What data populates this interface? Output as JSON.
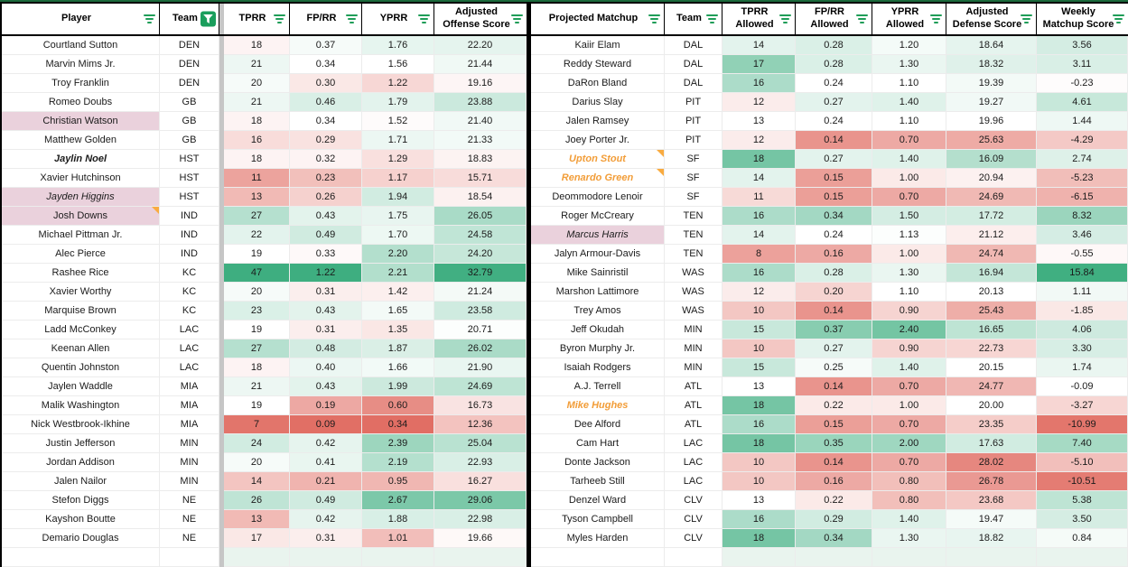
{
  "colors": {
    "grad_green": "#3eae80",
    "grad_red": "#e0695f",
    "highlight_pink": "#ead1dc",
    "orange_text": "#f29d38",
    "note_triangle": "#f9ab40",
    "filter_green": "#1f9d58",
    "filter_button_green": "#1a9e5c",
    "top_line_green": "#1b6a3c",
    "frozen_divider_gray": "#c6c6c6",
    "table_divider_black": "#000000"
  },
  "left_table": {
    "headers": [
      {
        "label": "Player",
        "icon": "filter-lines"
      },
      {
        "label": "Team",
        "icon": "filter-button"
      },
      {
        "label": "TPRR",
        "icon": "filter-lines"
      },
      {
        "label": "FP/RR",
        "icon": "filter-lines"
      },
      {
        "label": "YPRR",
        "icon": "filter-lines"
      },
      {
        "label": "Adjusted Offense Score",
        "icon": "filter-lines"
      }
    ],
    "columns": [
      {
        "key": "tprr",
        "min": 6,
        "mid": 19,
        "max": 40
      },
      {
        "key": "fprr",
        "min": 0.08,
        "mid": 0.34,
        "max": 0.95
      },
      {
        "key": "yprr",
        "min": 0.3,
        "mid": 1.55,
        "max": 3.2
      },
      {
        "key": "score",
        "min": 0,
        "mid": 20.5,
        "max": 33
      }
    ],
    "rows": [
      {
        "player": "Courtland Sutton",
        "team": "DEN",
        "tprr": "18",
        "fprr": "0.37",
        "yprr": "1.76",
        "score": "22.20"
      },
      {
        "player": "Marvin Mims Jr.",
        "team": "DEN",
        "tprr": "21",
        "fprr": "0.34",
        "yprr": "1.56",
        "score": "21.44"
      },
      {
        "player": "Troy Franklin",
        "team": "DEN",
        "tprr": "20",
        "fprr": "0.30",
        "yprr": "1.22",
        "score": "19.16"
      },
      {
        "player": "Romeo Doubs",
        "team": "GB",
        "tprr": "21",
        "fprr": "0.46",
        "yprr": "1.79",
        "score": "23.88"
      },
      {
        "player": "Christian Watson",
        "team": "GB",
        "tprr": "18",
        "fprr": "0.34",
        "yprr": "1.52",
        "score": "21.40",
        "bg": "pink"
      },
      {
        "player": "Matthew Golden",
        "team": "GB",
        "tprr": "16",
        "fprr": "0.29",
        "yprr": "1.71",
        "score": "21.33"
      },
      {
        "player": "Jaylin Noel",
        "team": "HST",
        "tprr": "18",
        "fprr": "0.32",
        "yprr": "1.29",
        "score": "18.83",
        "style": "bold-italic"
      },
      {
        "player": "Xavier Hutchinson",
        "team": "HST",
        "tprr": "11",
        "fprr": "0.23",
        "yprr": "1.17",
        "score": "15.71"
      },
      {
        "player": "Jayden Higgins",
        "team": "HST",
        "tprr": "13",
        "fprr": "0.26",
        "yprr": "1.94",
        "score": "18.54",
        "style": "italic",
        "bg": "pink"
      },
      {
        "player": "Josh Downs",
        "team": "IND",
        "tprr": "27",
        "fprr": "0.43",
        "yprr": "1.75",
        "score": "26.05",
        "bg": "pink",
        "note": true
      },
      {
        "player": "Michael Pittman Jr.",
        "team": "IND",
        "tprr": "22",
        "fprr": "0.49",
        "yprr": "1.70",
        "score": "24.58"
      },
      {
        "player": "Alec Pierce",
        "team": "IND",
        "tprr": "19",
        "fprr": "0.33",
        "yprr": "2.20",
        "score": "24.20"
      },
      {
        "player": "Rashee Rice",
        "team": "KC",
        "tprr": "47",
        "fprr": "1.22",
        "yprr": "2.21",
        "score": "32.79"
      },
      {
        "player": "Xavier Worthy",
        "team": "KC",
        "tprr": "20",
        "fprr": "0.31",
        "yprr": "1.42",
        "score": "21.24"
      },
      {
        "player": "Marquise Brown",
        "team": "KC",
        "tprr": "23",
        "fprr": "0.43",
        "yprr": "1.65",
        "score": "23.58"
      },
      {
        "player": "Ladd McConkey",
        "team": "LAC",
        "tprr": "19",
        "fprr": "0.31",
        "yprr": "1.35",
        "score": "20.71"
      },
      {
        "player": "Keenan Allen",
        "team": "LAC",
        "tprr": "27",
        "fprr": "0.48",
        "yprr": "1.87",
        "score": "26.02"
      },
      {
        "player": "Quentin Johnston",
        "team": "LAC",
        "tprr": "18",
        "fprr": "0.40",
        "yprr": "1.66",
        "score": "21.90"
      },
      {
        "player": "Jaylen Waddle",
        "team": "MIA",
        "tprr": "21",
        "fprr": "0.43",
        "yprr": "1.99",
        "score": "24.69"
      },
      {
        "player": "Malik Washington",
        "team": "MIA",
        "tprr": "19",
        "fprr": "0.19",
        "yprr": "0.60",
        "score": "16.73"
      },
      {
        "player": "Nick Westbrook-Ikhine",
        "team": "MIA",
        "tprr": "7",
        "fprr": "0.09",
        "yprr": "0.34",
        "score": "12.36"
      },
      {
        "player": "Justin Jefferson",
        "team": "MIN",
        "tprr": "24",
        "fprr": "0.42",
        "yprr": "2.39",
        "score": "25.04"
      },
      {
        "player": "Jordan Addison",
        "team": "MIN",
        "tprr": "20",
        "fprr": "0.41",
        "yprr": "2.19",
        "score": "22.93"
      },
      {
        "player": "Jalen Nailor",
        "team": "MIN",
        "tprr": "14",
        "fprr": "0.21",
        "yprr": "0.95",
        "score": "16.27"
      },
      {
        "player": "Stefon Diggs",
        "team": "NE",
        "tprr": "26",
        "fprr": "0.49",
        "yprr": "2.67",
        "score": "29.06"
      },
      {
        "player": "Kayshon Boutte",
        "team": "NE",
        "tprr": "13",
        "fprr": "0.42",
        "yprr": "1.88",
        "score": "22.98"
      },
      {
        "player": "Demario Douglas",
        "team": "NE",
        "tprr": "17",
        "fprr": "0.31",
        "yprr": "1.01",
        "score": "19.66"
      }
    ]
  },
  "right_table": {
    "headers": [
      {
        "label": "Projected Matchup",
        "icon": "filter-lines"
      },
      {
        "label": "Team",
        "icon": "filter-lines"
      },
      {
        "label": "TPRR Allowed",
        "icon": "filter-lines"
      },
      {
        "label": "FP/RR Allowed",
        "icon": "filter-lines"
      },
      {
        "label": "YPRR Allowed",
        "icon": "filter-lines"
      },
      {
        "label": "Adjusted Defense Score",
        "icon": "filter-lines"
      },
      {
        "label": "Weekly Matchup Score",
        "icon": "filter-lines"
      }
    ],
    "columns": [
      {
        "key": "tprr_allowed",
        "min": 5,
        "mid": 13,
        "max": 20
      },
      {
        "key": "fprr_allowed",
        "min": 0.1,
        "mid": 0.24,
        "max": 0.45
      },
      {
        "key": "yprr_allowed",
        "min": 0.4,
        "mid": 1.1,
        "max": 2.9
      },
      {
        "key": "defense_score",
        "min": 10,
        "mid": 20,
        "max": 30,
        "invert": true
      },
      {
        "key": "weekly_score",
        "min": -12,
        "mid": 0,
        "max": 16
      }
    ],
    "rows": [
      {
        "matchup": "Kaiir Elam",
        "team": "DAL",
        "tprr_allowed": "14",
        "fprr_allowed": "0.28",
        "yprr_allowed": "1.20",
        "defense_score": "18.64",
        "weekly_score": "3.56"
      },
      {
        "matchup": "Reddy Steward",
        "team": "DAL",
        "tprr_allowed": "17",
        "fprr_allowed": "0.28",
        "yprr_allowed": "1.30",
        "defense_score": "18.32",
        "weekly_score": "3.11"
      },
      {
        "matchup": "DaRon Bland",
        "team": "DAL",
        "tprr_allowed": "16",
        "fprr_allowed": "0.24",
        "yprr_allowed": "1.10",
        "defense_score": "19.39",
        "weekly_score": "-0.23"
      },
      {
        "matchup": "Darius Slay",
        "team": "PIT",
        "tprr_allowed": "12",
        "fprr_allowed": "0.27",
        "yprr_allowed": "1.40",
        "defense_score": "19.27",
        "weekly_score": "4.61"
      },
      {
        "matchup": "Jalen Ramsey",
        "team": "PIT",
        "tprr_allowed": "13",
        "fprr_allowed": "0.24",
        "yprr_allowed": "1.10",
        "defense_score": "19.96",
        "weekly_score": "1.44"
      },
      {
        "matchup": "Joey Porter Jr.",
        "team": "PIT",
        "tprr_allowed": "12",
        "fprr_allowed": "0.14",
        "yprr_allowed": "0.70",
        "defense_score": "25.63",
        "weekly_score": "-4.29"
      },
      {
        "matchup": "Upton Stout",
        "team": "SF",
        "tprr_allowed": "18",
        "fprr_allowed": "0.27",
        "yprr_allowed": "1.40",
        "defense_score": "16.09",
        "weekly_score": "2.74",
        "style": "orange-italic",
        "note": true
      },
      {
        "matchup": "Renardo Green",
        "team": "SF",
        "tprr_allowed": "14",
        "fprr_allowed": "0.15",
        "yprr_allowed": "1.00",
        "defense_score": "20.94",
        "weekly_score": "-5.23",
        "style": "orange-italic",
        "note": true
      },
      {
        "matchup": "Deommodore Lenoir",
        "team": "SF",
        "tprr_allowed": "11",
        "fprr_allowed": "0.15",
        "yprr_allowed": "0.70",
        "defense_score": "24.69",
        "weekly_score": "-6.15"
      },
      {
        "matchup": "Roger McCreary",
        "team": "TEN",
        "tprr_allowed": "16",
        "fprr_allowed": "0.34",
        "yprr_allowed": "1.50",
        "defense_score": "17.72",
        "weekly_score": "8.32"
      },
      {
        "matchup": "Marcus Harris",
        "team": "TEN",
        "tprr_allowed": "14",
        "fprr_allowed": "0.24",
        "yprr_allowed": "1.13",
        "defense_score": "21.12",
        "weekly_score": "3.46",
        "style": "italic",
        "bg": "pink"
      },
      {
        "matchup": "Jalyn Armour-Davis",
        "team": "TEN",
        "tprr_allowed": "8",
        "fprr_allowed": "0.16",
        "yprr_allowed": "1.00",
        "defense_score": "24.74",
        "weekly_score": "-0.55"
      },
      {
        "matchup": "Mike Sainristil",
        "team": "WAS",
        "tprr_allowed": "16",
        "fprr_allowed": "0.28",
        "yprr_allowed": "1.30",
        "defense_score": "16.94",
        "weekly_score": "15.84"
      },
      {
        "matchup": "Marshon Lattimore",
        "team": "WAS",
        "tprr_allowed": "12",
        "fprr_allowed": "0.20",
        "yprr_allowed": "1.10",
        "defense_score": "20.13",
        "weekly_score": "1.11"
      },
      {
        "matchup": "Trey Amos",
        "team": "WAS",
        "tprr_allowed": "10",
        "fprr_allowed": "0.14",
        "yprr_allowed": "0.90",
        "defense_score": "25.43",
        "weekly_score": "-1.85"
      },
      {
        "matchup": "Jeff Okudah",
        "team": "MIN",
        "tprr_allowed": "15",
        "fprr_allowed": "0.37",
        "yprr_allowed": "2.40",
        "defense_score": "16.65",
        "weekly_score": "4.06"
      },
      {
        "matchup": "Byron Murphy Jr.",
        "team": "MIN",
        "tprr_allowed": "10",
        "fprr_allowed": "0.27",
        "yprr_allowed": "0.90",
        "defense_score": "22.73",
        "weekly_score": "3.30"
      },
      {
        "matchup": "Isaiah Rodgers",
        "team": "MIN",
        "tprr_allowed": "15",
        "fprr_allowed": "0.25",
        "yprr_allowed": "1.40",
        "defense_score": "20.15",
        "weekly_score": "1.74"
      },
      {
        "matchup": "A.J. Terrell",
        "team": "ATL",
        "tprr_allowed": "13",
        "fprr_allowed": "0.14",
        "yprr_allowed": "0.70",
        "defense_score": "24.77",
        "weekly_score": "-0.09"
      },
      {
        "matchup": "Mike Hughes",
        "team": "ATL",
        "tprr_allowed": "18",
        "fprr_allowed": "0.22",
        "yprr_allowed": "1.00",
        "defense_score": "20.00",
        "weekly_score": "-3.27",
        "style": "orange-italic"
      },
      {
        "matchup": "Dee Alford",
        "team": "ATL",
        "tprr_allowed": "16",
        "fprr_allowed": "0.15",
        "yprr_allowed": "0.70",
        "defense_score": "23.35",
        "weekly_score": "-10.99"
      },
      {
        "matchup": "Cam Hart",
        "team": "LAC",
        "tprr_allowed": "18",
        "fprr_allowed": "0.35",
        "yprr_allowed": "2.00",
        "defense_score": "17.63",
        "weekly_score": "7.40"
      },
      {
        "matchup": "Donte Jackson",
        "team": "LAC",
        "tprr_allowed": "10",
        "fprr_allowed": "0.14",
        "yprr_allowed": "0.70",
        "defense_score": "28.02",
        "weekly_score": "-5.10"
      },
      {
        "matchup": "Tarheeb Still",
        "team": "LAC",
        "tprr_allowed": "10",
        "fprr_allowed": "0.16",
        "yprr_allowed": "0.80",
        "defense_score": "26.78",
        "weekly_score": "-10.51"
      },
      {
        "matchup": "Denzel Ward",
        "team": "CLV",
        "tprr_allowed": "13",
        "fprr_allowed": "0.22",
        "yprr_allowed": "0.80",
        "defense_score": "23.68",
        "weekly_score": "5.38"
      },
      {
        "matchup": "Tyson Campbell",
        "team": "CLV",
        "tprr_allowed": "16",
        "fprr_allowed": "0.29",
        "yprr_allowed": "1.40",
        "defense_score": "19.47",
        "weekly_score": "3.50"
      },
      {
        "matchup": "Myles Harden",
        "team": "CLV",
        "tprr_allowed": "18",
        "fprr_allowed": "0.34",
        "yprr_allowed": "1.30",
        "defense_score": "18.82",
        "weekly_score": "0.84"
      }
    ]
  }
}
